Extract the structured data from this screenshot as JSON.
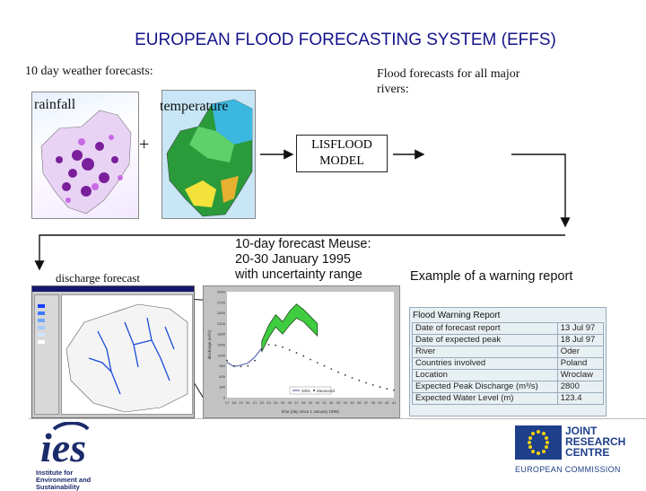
{
  "title": "EUROPEAN FLOOD FORECASTING SYSTEM (EFFS)",
  "weather": {
    "heading": "10 day weather forecasts:",
    "rainfall_label": "rainfall",
    "temperature_label": "temperature",
    "plus": "+"
  },
  "flood": {
    "heading_line1": "Flood forecasts for all major",
    "heading_line2": "rivers:"
  },
  "model": {
    "line1": "LISFLOOD",
    "line2": "MODEL"
  },
  "discharge_label": "discharge forecast",
  "meuse": {
    "line1": "10-day forecast Meuse:",
    "line2": "20-30 January 1995",
    "line3": "with uncertainty range"
  },
  "warning_example_label": "Example of a warning report",
  "report": {
    "title": "Flood Warning Report",
    "rows": [
      {
        "label": "Date of forecast report",
        "value": "13 Jul 97"
      },
      {
        "label": "Date of expected peak",
        "value": "18 Jul 97"
      },
      {
        "label": "River",
        "value": "Oder"
      },
      {
        "label": "Countries involved",
        "value": "Poland"
      },
      {
        "label": "Location",
        "value": "Wroclaw"
      },
      {
        "label": "Expected Peak Discharge (m³/s)",
        "value": "2800"
      },
      {
        "label": "Expected Water Level (m)",
        "value": "123.4"
      }
    ]
  },
  "ies": {
    "logo_text": "ies",
    "line1": "Institute for",
    "line2": "Environment and",
    "line3": "Sustainability"
  },
  "jrc": {
    "line1": "JOINT",
    "line2": "RESEARCH",
    "line3": "CENTRE",
    "line4": "EUROPEAN COMMISSION"
  },
  "chart_data": {
    "type": "line",
    "title": "",
    "xlabel": "time (day since 1 January 1995)",
    "ylabel": "discharge (m³/s)",
    "x_ticks": [
      17,
      18,
      19,
      20,
      21,
      22,
      23,
      24,
      25,
      26,
      27,
      28,
      29,
      30,
      31,
      32,
      33,
      34,
      35,
      36,
      37,
      38,
      39,
      40,
      41
    ],
    "y_ticks": [
      0,
      300,
      600,
      900,
      1200,
      1500,
      1800,
      2100,
      2400,
      2700,
      3000
    ],
    "ylim": [
      0,
      3000
    ],
    "xlim": [
      17,
      41
    ],
    "legend": [
      "2001",
      "Measured"
    ],
    "series": [
      {
        "name": "Measured",
        "x": [
          17,
          18,
          19,
          20,
          21,
          22,
          23,
          24,
          25,
          26,
          27,
          28,
          29,
          30,
          31,
          32,
          33,
          34,
          35,
          36,
          37,
          38,
          39,
          40,
          41
        ],
        "y": [
          1050,
          900,
          880,
          900,
          1050,
          1350,
          1500,
          1480,
          1430,
          1350,
          1270,
          1180,
          1080,
          990,
          900,
          810,
          720,
          640,
          560,
          490,
          420,
          360,
          300,
          250,
          210
        ]
      },
      {
        "name": "2001",
        "x": [
          17,
          18,
          19,
          20,
          21,
          22
        ],
        "y": [
          1000,
          880,
          920,
          980,
          1150,
          1400
        ]
      },
      {
        "name": "upper",
        "x": [
          22,
          23,
          24,
          25,
          26,
          27,
          28,
          29,
          30
        ],
        "y": [
          1600,
          2050,
          2350,
          2150,
          2450,
          2650,
          2500,
          2300,
          2100
        ]
      },
      {
        "name": "lower",
        "x": [
          22,
          23,
          24,
          25,
          26,
          27,
          28,
          29,
          30
        ],
        "y": [
          1300,
          1700,
          2000,
          1800,
          2050,
          2250,
          2150,
          1950,
          1750
        ]
      }
    ]
  }
}
